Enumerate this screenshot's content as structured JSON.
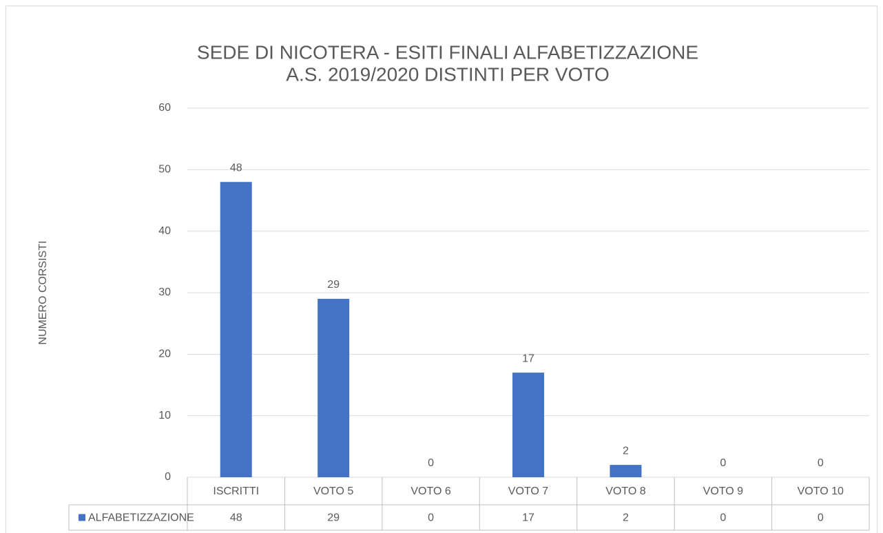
{
  "chart_data": {
    "type": "bar",
    "title": [
      "SEDE DI NICOTERA - ESITI FINALI ALFABETIZZAZIONE",
      "A.S. 2019/2020 DISTINTI PER VOTO"
    ],
    "y_label": "NUMERO CORSISTI",
    "categories": [
      "ISCRITTI",
      "VOTO 5",
      "VOTO 6",
      "VOTO 7",
      "VOTO 8",
      "VOTO 9",
      "VOTO 10"
    ],
    "series": [
      {
        "name": "ALFABETIZZAZIONE",
        "color": "#4472c4",
        "values": [
          48,
          29,
          0,
          17,
          2,
          0,
          0
        ]
      }
    ],
    "ylim": [
      0,
      60
    ],
    "yticks": [
      0,
      10,
      20,
      30,
      40,
      50,
      60
    ],
    "grid": true
  }
}
